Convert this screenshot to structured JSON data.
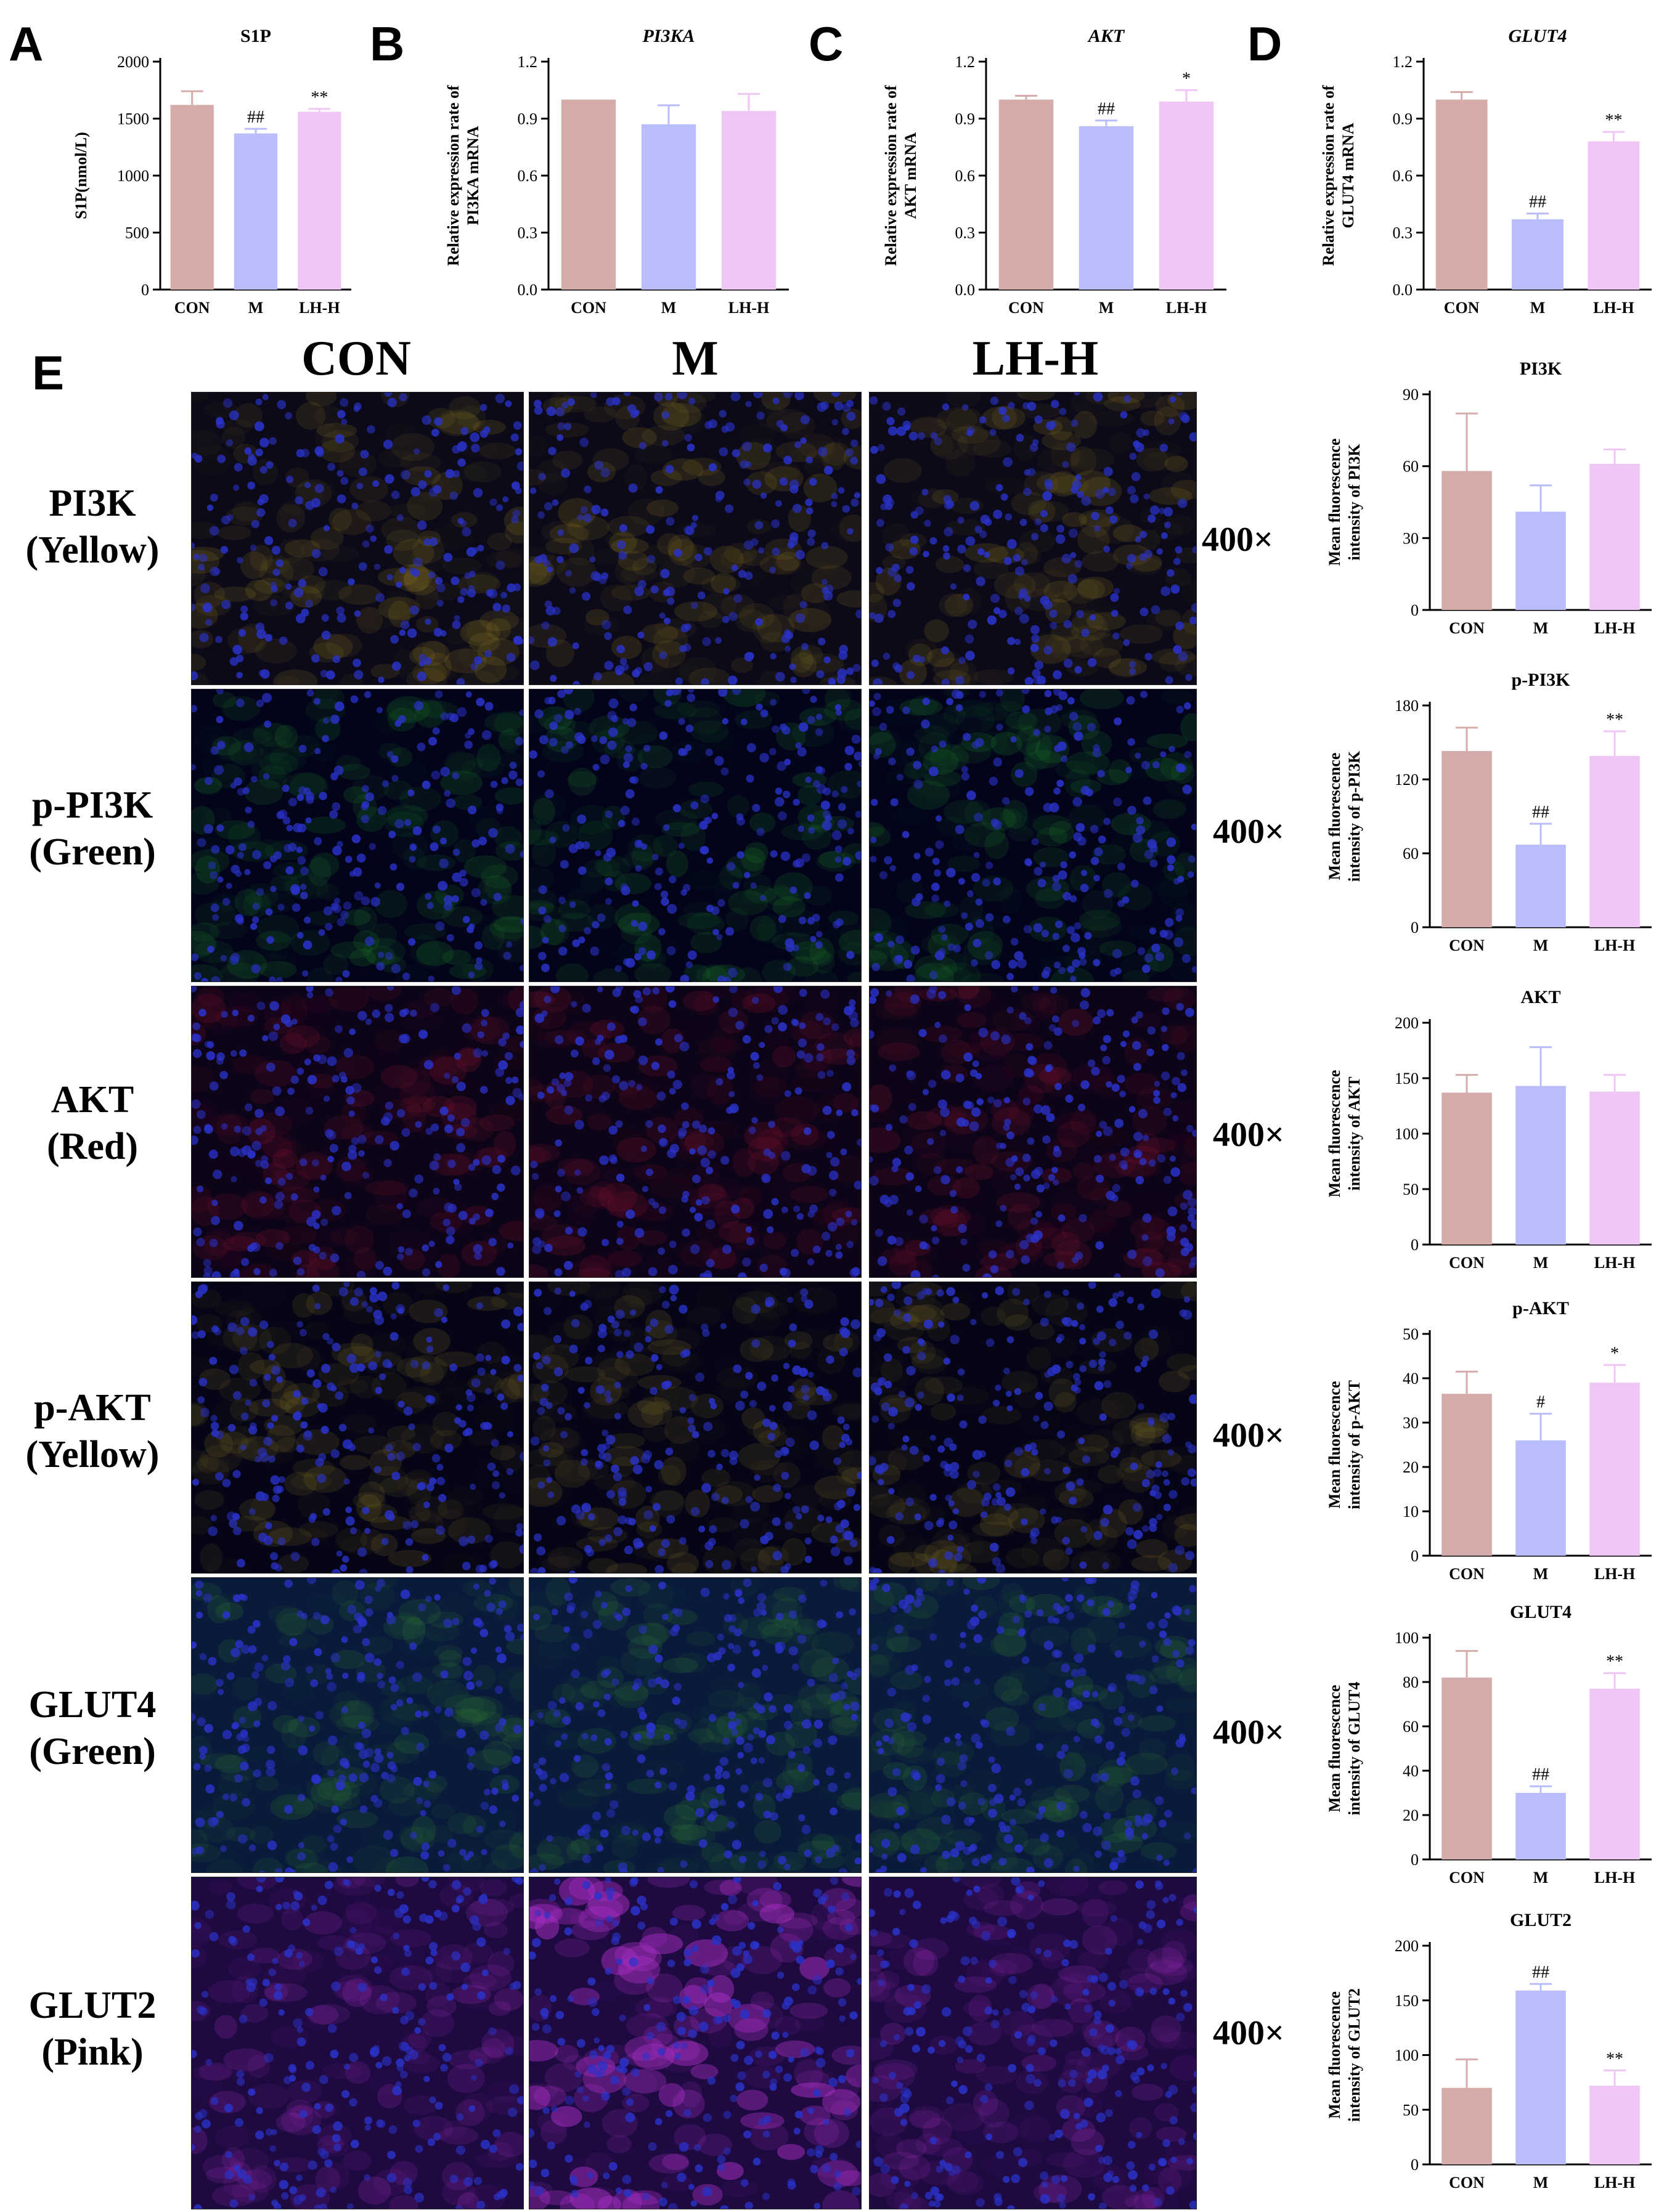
{
  "panel_letters": [
    "A",
    "B",
    "C",
    "D",
    "E"
  ],
  "columns": [
    "CON",
    "M",
    "LH-H"
  ],
  "magnification": "400×",
  "colors": {
    "CON": "#d5aca9",
    "M": "#babdfb",
    "LH-H": "#efc6f5"
  },
  "rows": [
    {
      "name": "PI3K",
      "stain": "(Yellow)",
      "tissue_color": "#8a7520",
      "image_bg": "#0c0a18"
    },
    {
      "name": "p-PI3K",
      "stain": "(Green)",
      "tissue_color": "#1c7a26",
      "image_bg": "#03041a"
    },
    {
      "name": "AKT",
      "stain": "(Red)",
      "tissue_color": "#8a1530",
      "image_bg": "#0d0418"
    },
    {
      "name": "p-AKT",
      "stain": "(Yellow)",
      "tissue_color": "#7a6a22",
      "image_bg": "#050516"
    },
    {
      "name": "GLUT4",
      "stain": "(Green)",
      "tissue_color": "#2f7a30",
      "image_bg": "#0a1a3a"
    },
    {
      "name": "GLUT2",
      "stain": "(Pink)",
      "tissue_color": "#a42ec0",
      "image_bg": "#1e0a40"
    }
  ],
  "chart_data": [
    {
      "id": "A",
      "type": "bar",
      "title": "S1P",
      "italic_title": false,
      "ylabel": [
        "S1P(nmol/L)"
      ],
      "ylim": [
        0,
        2000
      ],
      "yticks": [
        "0",
        "500",
        "1000",
        "1500",
        "2000"
      ],
      "categories": [
        "CON",
        "M",
        "LH-H"
      ],
      "values": [
        1620,
        1370,
        1560
      ],
      "errors": [
        120,
        40,
        25
      ],
      "annotations": [
        "",
        "##",
        "**"
      ]
    },
    {
      "id": "B",
      "type": "bar",
      "title": "PI3KA",
      "italic_title": true,
      "ylabel": [
        "Relative expression rate of",
        "PI3KA mRNA"
      ],
      "ylim": [
        0,
        1.2
      ],
      "yticks": [
        "0.0",
        "0.3",
        "0.6",
        "0.9",
        "1.2"
      ],
      "categories": [
        "CON",
        "M",
        "LH-H"
      ],
      "values": [
        1.0,
        0.87,
        0.94
      ],
      "errors": [
        0.0,
        0.1,
        0.09
      ],
      "annotations": [
        "",
        "",
        ""
      ]
    },
    {
      "id": "C",
      "type": "bar",
      "title": "AKT",
      "italic_title": true,
      "ylabel": [
        "Relative expression rate of",
        "AKT mRNA"
      ],
      "ylim": [
        0,
        1.2
      ],
      "yticks": [
        "0.0",
        "0.3",
        "0.6",
        "0.9",
        "1.2"
      ],
      "categories": [
        "CON",
        "M",
        "LH-H"
      ],
      "values": [
        1.0,
        0.86,
        0.99
      ],
      "errors": [
        0.02,
        0.03,
        0.06
      ],
      "annotations": [
        "",
        "##",
        "*"
      ]
    },
    {
      "id": "D",
      "type": "bar",
      "title": "GLUT4",
      "italic_title": true,
      "ylabel": [
        "Relative expression rate of",
        "GLUT4 mRNA"
      ],
      "ylim": [
        0,
        1.2
      ],
      "yticks": [
        "0.0",
        "0.3",
        "0.6",
        "0.9",
        "1.2"
      ],
      "categories": [
        "CON",
        "M",
        "LH-H"
      ],
      "values": [
        1.0,
        0.37,
        0.78
      ],
      "errors": [
        0.04,
        0.03,
        0.05
      ],
      "annotations": [
        "",
        "##",
        "**"
      ]
    },
    {
      "id": "E1",
      "type": "bar",
      "title": "PI3K",
      "italic_title": false,
      "ylabel": [
        "Mean fluorescence",
        "intensity of  PI3K"
      ],
      "ylim": [
        0,
        90
      ],
      "yticks": [
        "0",
        "30",
        "60",
        "90"
      ],
      "categories": [
        "CON",
        "M",
        "LH-H"
      ],
      "values": [
        58,
        41,
        61
      ],
      "errors": [
        24,
        11,
        6
      ],
      "annotations": [
        "",
        "",
        ""
      ]
    },
    {
      "id": "E2",
      "type": "bar",
      "title": "p-PI3K",
      "italic_title": false,
      "ylabel": [
        "Mean fluorescence",
        "intensity of  p-PI3K"
      ],
      "ylim": [
        0,
        180
      ],
      "yticks": [
        "0",
        "60",
        "120",
        "180"
      ],
      "categories": [
        "CON",
        "M",
        "LH-H"
      ],
      "values": [
        143,
        67,
        139
      ],
      "errors": [
        19,
        17,
        20
      ],
      "annotations": [
        "",
        "##",
        "**"
      ]
    },
    {
      "id": "E3",
      "type": "bar",
      "title": "AKT",
      "italic_title": false,
      "ylabel": [
        "Mean fluorescence",
        "intensity of  AKT"
      ],
      "ylim": [
        0,
        200
      ],
      "yticks": [
        "0",
        "50",
        "100",
        "150",
        "200"
      ],
      "categories": [
        "CON",
        "M",
        "LH-H"
      ],
      "values": [
        137,
        143,
        138
      ],
      "errors": [
        16,
        35,
        15
      ],
      "annotations": [
        "",
        "",
        ""
      ]
    },
    {
      "id": "E4",
      "type": "bar",
      "title": "p-AKT",
      "italic_title": false,
      "ylabel": [
        "Mean fluorescence",
        "intensity of  p-AKT"
      ],
      "ylim": [
        0,
        50
      ],
      "yticks": [
        "0",
        "10",
        "20",
        "30",
        "40",
        "50"
      ],
      "categories": [
        "CON",
        "M",
        "LH-H"
      ],
      "values": [
        36.5,
        26,
        39
      ],
      "errors": [
        5,
        6,
        4
      ],
      "annotations": [
        "",
        "#",
        "*"
      ]
    },
    {
      "id": "E5",
      "type": "bar",
      "title": "GLUT4",
      "italic_title": false,
      "ylabel": [
        "Mean fluorescence",
        "intensity of  GLUT4"
      ],
      "ylim": [
        0,
        100
      ],
      "yticks": [
        "0",
        "20",
        "40",
        "60",
        "80",
        "100"
      ],
      "categories": [
        "CON",
        "M",
        "LH-H"
      ],
      "values": [
        82,
        30,
        77
      ],
      "errors": [
        12,
        3,
        7
      ],
      "annotations": [
        "",
        "##",
        "**"
      ]
    },
    {
      "id": "E6",
      "type": "bar",
      "title": "GLUT2",
      "italic_title": false,
      "ylabel": [
        "Mean fluorescence",
        "intensity of  GLUT2"
      ],
      "ylim": [
        0,
        200
      ],
      "yticks": [
        "0",
        "50",
        "100",
        "150",
        "200"
      ],
      "categories": [
        "CON",
        "M",
        "LH-H"
      ],
      "values": [
        70,
        159,
        72
      ],
      "errors": [
        26,
        6,
        14
      ],
      "annotations": [
        "",
        "##",
        "**"
      ]
    }
  ]
}
